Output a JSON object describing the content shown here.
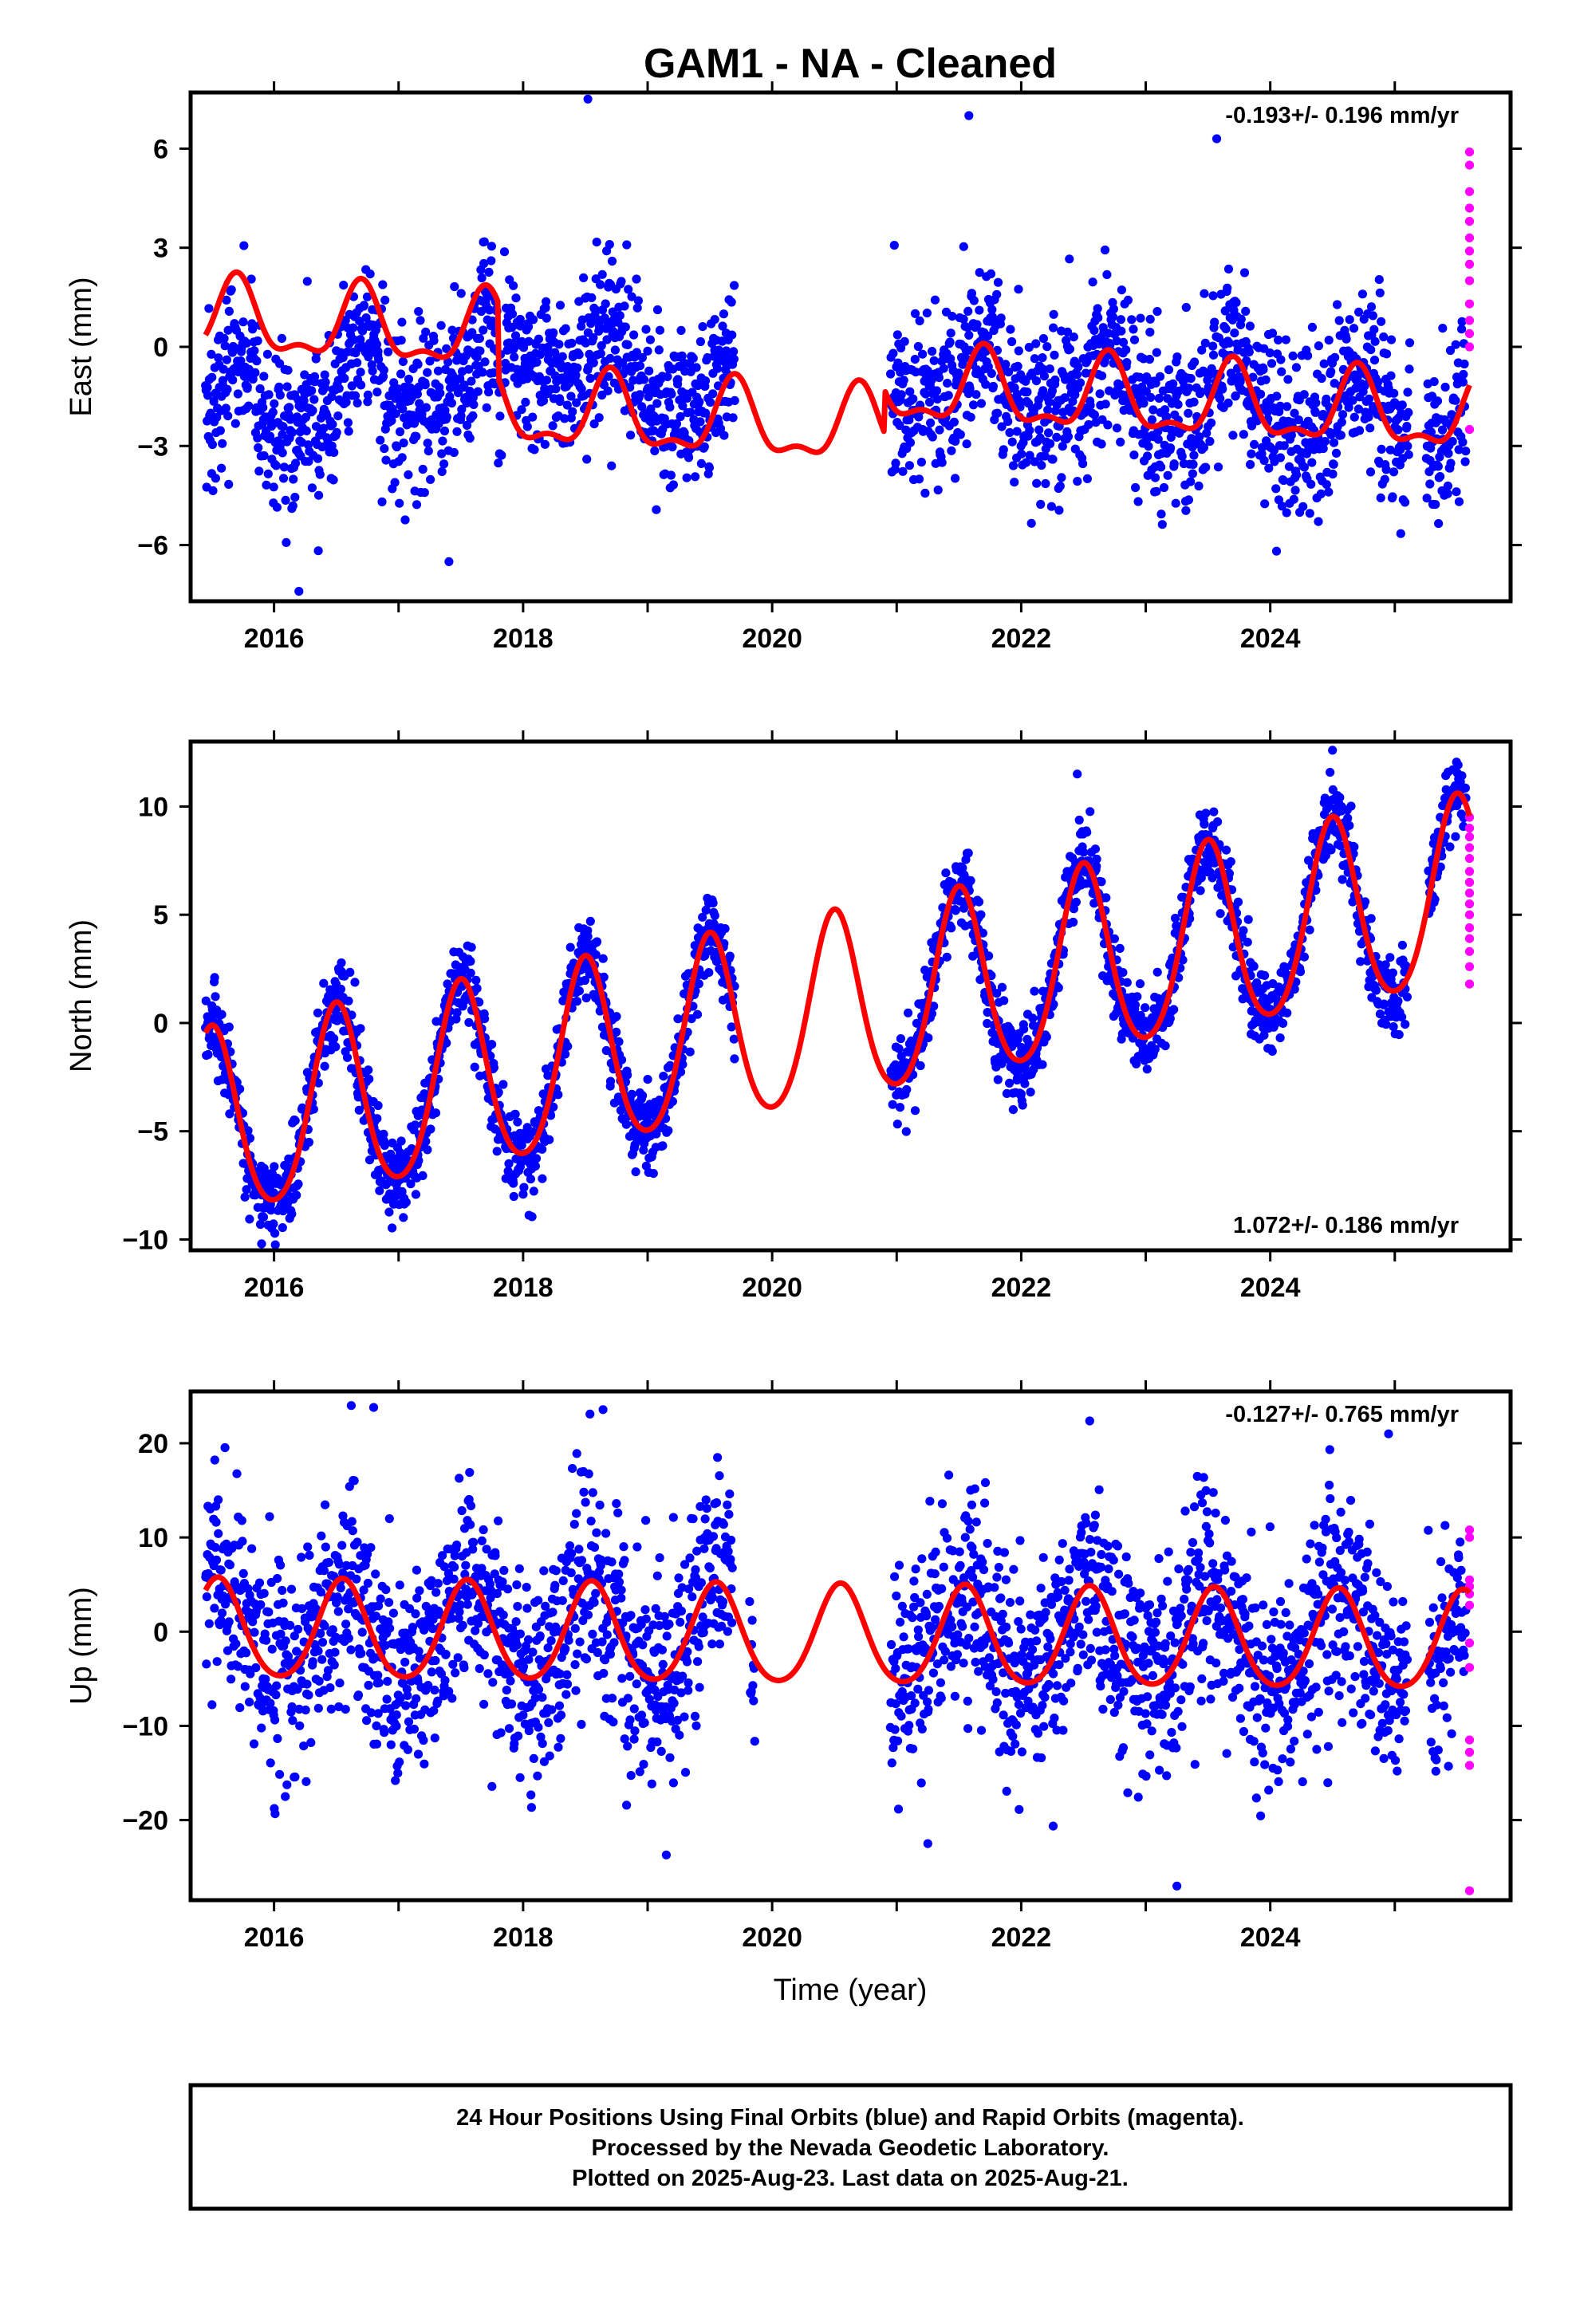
{
  "title": "GAM1  - NA - Cleaned",
  "xlabel": "Time (year)",
  "footer": [
    "24 Hour Positions Using Final Orbits (blue) and Rapid Orbits (magenta).",
    "Processed by the Nevada Geodetic Laboratory.",
    "Plotted on 2025-Aug-23. Last data on 2025-Aug-21."
  ],
  "colors": {
    "final": "#0000ff",
    "rapid": "#ff00ff",
    "model": "#ff0000"
  },
  "chart_data": [
    {
      "type": "scatter",
      "component": "east",
      "ylabel": "East (mm)",
      "rate_label": "-0.193+/- 0.196 mm/yr",
      "rate_position": "top-right",
      "xlim": [
        2015.33,
        2025.93
      ],
      "ylim": [
        -7.7,
        7.7
      ],
      "xticks": [
        2016,
        2018,
        2020,
        2022,
        2024
      ],
      "xticklabels": [
        "2016",
        "2018",
        "2020",
        "2022",
        "2024"
      ],
      "yticks": [
        -6,
        -3,
        0,
        3,
        6
      ],
      "yticklabels": [
        "−6",
        "−3",
        "0",
        "3",
        "6"
      ],
      "data_segments": [
        [
          2015.45,
          2017.83,
          -2.9
        ],
        [
          2017.85,
          2019.7,
          2.0
        ],
        [
          2020.95,
          2025.12,
          0.3
        ],
        [
          2025.25,
          2025.57,
          -0.5
        ]
      ],
      "model": {
        "offset": 0.8,
        "trend": -0.193,
        "annual_amp": 1.05,
        "annual_phase": 2015.7,
        "semiannual_amp": 0.45,
        "steps": [
          [
            2017.8,
            -2.3
          ],
          [
            2020.9,
            1.3
          ]
        ]
      },
      "scatter_sd": 1.25,
      "rapid": {
        "x": 2025.6,
        "y": [
          5.9,
          5.5,
          4.7,
          4.2,
          3.8,
          3.3,
          2.9,
          2.5,
          2.0,
          1.3,
          0.8,
          0.4,
          0.0,
          -2.5
        ]
      },
      "outliers": [
        [
          2018.52,
          7.5
        ],
        [
          2023.57,
          6.3
        ],
        [
          2021.58,
          7.0
        ],
        [
          2016.2,
          -7.4
        ]
      ]
    },
    {
      "type": "scatter",
      "component": "north",
      "ylabel": "North (mm)",
      "rate_label": "1.072+/- 0.186 mm/yr",
      "rate_position": "bottom-right",
      "xlim": [
        2015.33,
        2025.93
      ],
      "ylim": [
        -10.5,
        13
      ],
      "xticks": [
        2016,
        2018,
        2020,
        2022,
        2024
      ],
      "xticklabels": [
        "2016",
        "2018",
        "2020",
        "2022",
        "2024"
      ],
      "yticks": [
        -10,
        -5,
        0,
        5,
        10
      ],
      "yticklabels": [
        "−10",
        "−5",
        "0",
        "5",
        "10"
      ],
      "data_segments": [
        [
          2015.45,
          2019.7,
          0.0
        ],
        [
          2020.95,
          2025.1,
          0.0
        ],
        [
          2025.27,
          2025.57,
          0.0
        ]
      ],
      "model": {
        "offset": -4.9,
        "trend": 1.072,
        "annual_amp": 4.3,
        "annual_phase": 2015.5,
        "semiannual_amp": 0.5,
        "steps": []
      },
      "scatter_sd": 0.95,
      "rapid": {
        "x": 2025.6,
        "y": [
          9.5,
          9.0,
          8.6,
          8.1,
          7.6,
          7.0,
          6.5,
          6.0,
          5.5,
          5.0,
          4.4,
          3.9,
          3.3,
          2.6,
          1.8
        ]
      },
      "outliers": [
        [
          2024.5,
          12.6
        ],
        [
          2022.45,
          11.5
        ],
        [
          2015.9,
          -10.2
        ]
      ]
    },
    {
      "type": "scatter",
      "component": "up",
      "ylabel": "Up (mm)",
      "rate_label": "-0.127+/- 0.765 mm/yr",
      "rate_position": "top-right",
      "xlim": [
        2015.33,
        2025.93
      ],
      "ylim": [
        -28.5,
        25.5
      ],
      "xticks": [
        2016,
        2018,
        2020,
        2022,
        2024
      ],
      "xticklabels": [
        "2016",
        "2018",
        "2020",
        "2022",
        "2024"
      ],
      "yticks": [
        -20,
        -10,
        0,
        10,
        20
      ],
      "yticklabels": [
        "−20",
        "−10",
        "0",
        "10",
        "20"
      ],
      "data_segments": [
        [
          2015.45,
          2019.68,
          0.0
        ],
        [
          2019.82,
          2019.86,
          0.0
        ],
        [
          2020.95,
          2025.1,
          0.0
        ],
        [
          2025.27,
          2025.57,
          -4.0
        ]
      ],
      "model": {
        "offset": 0.0,
        "trend": -0.127,
        "annual_amp": 5.2,
        "annual_phase": 2015.55,
        "semiannual_amp": 0.6,
        "steps": []
      },
      "scatter_sd": 5.6,
      "rapid": {
        "x": 2025.6,
        "y": [
          10.8,
          10.0,
          5.5,
          4.8,
          4.0,
          2.8,
          -1.2,
          -3.8,
          -11.5,
          -12.8,
          -14.2,
          -27.5
        ]
      },
      "outliers": [
        [
          2016.62,
          24.0
        ],
        [
          2016.8,
          23.8
        ],
        [
          2023.25,
          -27.0
        ],
        [
          2019.15,
          -23.7
        ],
        [
          2024.95,
          21.0
        ],
        [
          2021.25,
          -22.5
        ]
      ]
    }
  ]
}
